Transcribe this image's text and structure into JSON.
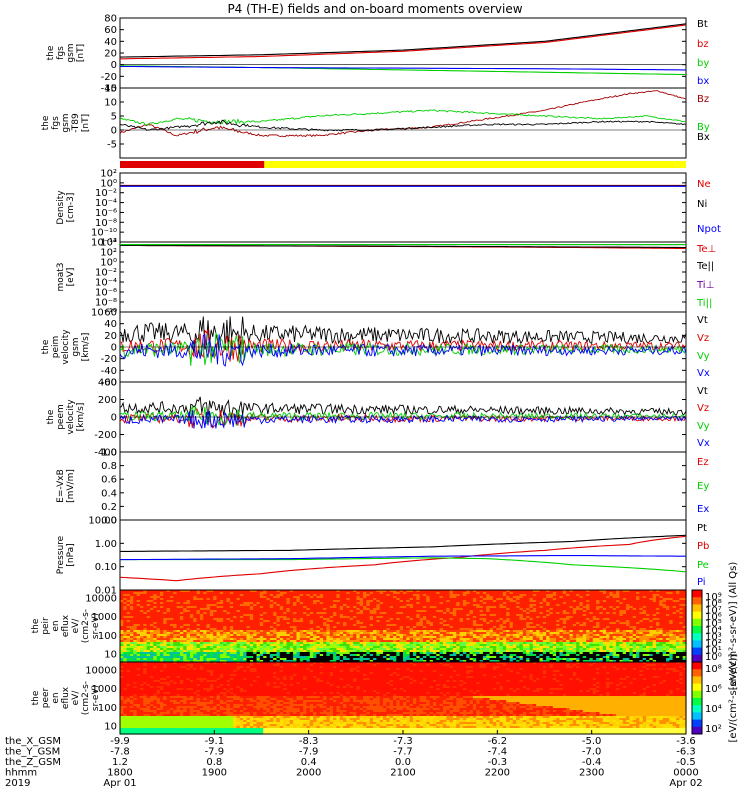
{
  "page": {
    "title": "P4 (TH-E) fields and on-board moments overview"
  },
  "colors": {
    "black": "#000000",
    "red": "#e00000",
    "dark_red": "#a00000",
    "green": "#00d000",
    "blue": "#0000ff",
    "yellow": "#ffff00",
    "purple": "#7000a0"
  },
  "chart_data": [
    {
      "id": "fgs_gsm",
      "type": "line",
      "ylabel_lines": [
        "the",
        "fgs",
        "gsm",
        "[nT]"
      ],
      "ylim": [
        -40,
        80
      ],
      "yticks": [
        -40,
        -20,
        0,
        20,
        40,
        60,
        80
      ],
      "series": [
        {
          "name": "Bt",
          "color": "#000000",
          "x": [
            0,
            0.25,
            0.5,
            0.75,
            1
          ],
          "values": [
            13,
            17,
            25,
            40,
            70
          ]
        },
        {
          "name": "bz",
          "color": "#e00000",
          "x": [
            0,
            0.25,
            0.5,
            0.75,
            1
          ],
          "values": [
            10,
            14,
            23,
            38,
            68
          ]
        },
        {
          "name": "by",
          "color": "#00d000",
          "x": [
            0,
            0.25,
            0.5,
            0.75,
            1
          ],
          "values": [
            -2,
            -5,
            -9,
            -13,
            -17
          ]
        },
        {
          "name": "bx",
          "color": "#0000ff",
          "x": [
            0,
            0.25,
            0.5,
            0.75,
            1
          ],
          "values": [
            -3,
            -5,
            -6,
            -7,
            -9
          ]
        }
      ],
      "noise": 0
    },
    {
      "id": "fgs_gsm_dc",
      "type": "line",
      "ylabel_lines": [
        "the",
        "fgs",
        "gsm",
        "-T89",
        "[nT]"
      ],
      "ylim": [
        -10,
        15
      ],
      "yticks": [
        -5,
        0,
        5,
        10,
        15
      ],
      "series": [
        {
          "name": "Bz",
          "color": "#a00000",
          "x": [
            0,
            0.05,
            0.1,
            0.17,
            0.25,
            0.35,
            0.45,
            0.55,
            0.65,
            0.75,
            0.82,
            0.9,
            0.95,
            1
          ],
          "values": [
            -1,
            2,
            -2,
            1,
            -2,
            -2,
            0,
            1,
            4,
            7,
            10,
            13,
            14,
            11
          ]
        },
        {
          "name": "By",
          "color": "#00d000",
          "x": [
            0,
            0.05,
            0.1,
            0.17,
            0.25,
            0.35,
            0.45,
            0.55,
            0.65,
            0.75,
            0.85,
            0.93,
            1
          ],
          "values": [
            4,
            2,
            4,
            3,
            3,
            5,
            6,
            7,
            6,
            5,
            4,
            5,
            3
          ]
        },
        {
          "name": "Bx",
          "color": "#000000",
          "x": [
            0,
            0.05,
            0.1,
            0.17,
            0.25,
            0.35,
            0.45,
            0.55,
            0.65,
            0.75,
            0.85,
            0.93,
            1
          ],
          "values": [
            2,
            0,
            1,
            3,
            1,
            0,
            0,
            1,
            2,
            2,
            3,
            3,
            2
          ]
        }
      ],
      "noise": 0.4
    },
    {
      "id": "flag_bar",
      "type": "bar",
      "segments": [
        {
          "from": 0,
          "to": 0.255,
          "color": "#e00000"
        },
        {
          "from": 0.255,
          "to": 1,
          "color": "#ffff00"
        }
      ]
    },
    {
      "id": "density",
      "type": "line",
      "log": true,
      "ylabel_lines": [
        "Density",
        "[cm-3]"
      ],
      "ylim": [
        1e-12,
        100
      ],
      "ytick_labels": [
        "10²",
        "10⁰",
        "10⁻²",
        "10⁻⁴",
        "10⁻⁶",
        "10⁻⁸",
        "10⁻¹⁰",
        "10⁻¹²"
      ],
      "series": [
        {
          "name": "Ne",
          "color": "#e00000",
          "x": [
            0,
            1
          ],
          "values": [
            0.3,
            0.3
          ]
        },
        {
          "name": "Ni",
          "color": "#000000",
          "x": [
            0,
            1
          ],
          "values": [
            0.25,
            0.25
          ]
        },
        {
          "name": "Npot",
          "color": "#0000ff",
          "x": [
            0,
            1
          ],
          "values": [
            0.2,
            0.2
          ]
        }
      ],
      "noise": 0
    },
    {
      "id": "moat3",
      "type": "line",
      "log": true,
      "ylabel_lines": [
        "moat3",
        "[eV]"
      ],
      "ylim": [
        1e-10,
        10000
      ],
      "ytick_labels": [
        "10⁴",
        "10²",
        "10⁰",
        "10⁻²",
        "10⁻⁴",
        "10⁻⁶",
        "10⁻⁸",
        "10⁻¹⁰"
      ],
      "series": [
        {
          "name": "Te⊥",
          "color": "#e00000",
          "x": [
            0,
            1
          ],
          "values": [
            2000,
            500
          ]
        },
        {
          "name": "Te||",
          "color": "#000000",
          "x": [
            0,
            1
          ],
          "values": [
            2000,
            800
          ]
        },
        {
          "name": "Ti⊥",
          "color": "#7000a0",
          "x": [
            0,
            1
          ],
          "values": [
            3000,
            3000
          ]
        },
        {
          "name": "Ti||",
          "color": "#00d000",
          "x": [
            0,
            1
          ],
          "values": [
            3000,
            3000
          ]
        }
      ],
      "noise": 0
    },
    {
      "id": "peim_velocity",
      "type": "line",
      "ylabel_lines": [
        "the",
        "peim",
        "velocity",
        "gsm",
        "[km/s]"
      ],
      "ylim": [
        -60,
        60
      ],
      "yticks": [
        -60,
        -40,
        -20,
        0,
        20,
        40,
        60
      ],
      "series": [
        {
          "name": "Vt",
          "color": "#000000",
          "x": [
            0,
            1
          ],
          "values": [
            25,
            15
          ]
        },
        {
          "name": "Vz",
          "color": "#e00000",
          "x": [
            0,
            1
          ],
          "values": [
            2,
            2
          ]
        },
        {
          "name": "Vy",
          "color": "#00d000",
          "x": [
            0,
            1
          ],
          "values": [
            -4,
            -4
          ]
        },
        {
          "name": "Vx",
          "color": "#0000ff",
          "x": [
            0,
            1
          ],
          "values": [
            -6,
            -6
          ]
        }
      ],
      "noise": 14
    },
    {
      "id": "peem_velocity",
      "type": "line",
      "ylabel_lines": [
        "the",
        "peem",
        "velocity",
        "[km/s]"
      ],
      "ylim": [
        -400,
        400
      ],
      "yticks": [
        -400,
        -200,
        0,
        200,
        400
      ],
      "series": [
        {
          "name": "Vt",
          "color": "#000000",
          "x": [
            0,
            1
          ],
          "values": [
            110,
            60
          ]
        },
        {
          "name": "Vz",
          "color": "#e00000",
          "x": [
            0,
            1
          ],
          "values": [
            -15,
            -15
          ]
        },
        {
          "name": "Vy",
          "color": "#00d000",
          "x": [
            0,
            1
          ],
          "values": [
            10,
            10
          ]
        },
        {
          "name": "Vx",
          "color": "#0000ff",
          "x": [
            0,
            1
          ],
          "values": [
            -30,
            -20
          ]
        }
      ],
      "noise": 55
    },
    {
      "id": "efield",
      "type": "line",
      "ylabel_lines": [
        "E=-VxB",
        "[mV/m]"
      ],
      "ylim": [
        0,
        1
      ],
      "yticks": [
        0,
        0.2,
        0.4,
        0.6,
        0.8,
        1.0
      ],
      "ytick_labels": [
        "0.0",
        "0.2",
        "0.4",
        "0.6",
        "0.8",
        "1.0"
      ],
      "series": [
        {
          "name": "Ez",
          "color": "#e00000",
          "x": [],
          "values": []
        },
        {
          "name": "Ey",
          "color": "#00d000",
          "x": [],
          "values": []
        },
        {
          "name": "Ex",
          "color": "#0000ff",
          "x": [],
          "values": []
        }
      ],
      "noise": 0
    },
    {
      "id": "pressure",
      "type": "line",
      "log": true,
      "ylabel_lines": [
        "Pressure",
        "[nPa]"
      ],
      "ylim": [
        0.01,
        10
      ],
      "ytick_labels": [
        "10.00",
        "1.00",
        "0.10",
        "0.01"
      ],
      "series": [
        {
          "name": "Pt",
          "color": "#000000",
          "x": [
            0,
            0.3,
            0.55,
            0.8,
            1
          ],
          "values": [
            0.45,
            0.5,
            0.7,
            1.2,
            2.2
          ]
        },
        {
          "name": "Pb",
          "color": "#e00000",
          "x": [
            0,
            0.1,
            0.25,
            0.45,
            0.6,
            0.75,
            0.9,
            1
          ],
          "values": [
            0.035,
            0.025,
            0.05,
            0.12,
            0.25,
            0.5,
            0.9,
            2.0
          ]
        },
        {
          "name": "Pe",
          "color": "#00d000",
          "x": [
            0,
            0.3,
            0.55,
            0.65,
            0.8,
            1
          ],
          "values": [
            0.2,
            0.2,
            0.24,
            0.22,
            0.12,
            0.06
          ]
        },
        {
          "name": "Pi",
          "color": "#0000ff",
          "x": [
            0,
            0.3,
            0.55,
            0.8,
            1
          ],
          "values": [
            0.2,
            0.22,
            0.28,
            0.3,
            0.28
          ]
        }
      ],
      "noise": 0
    },
    {
      "id": "peir_spectrogram",
      "type": "heatmap",
      "ylabel_lines": [
        "the",
        "peir",
        "en",
        "eflux",
        "eV/",
        "(cm2-s-",
        "sr-eV)"
      ],
      "ytick_labels": [
        "10000",
        "1000",
        "100",
        "10"
      ],
      "colorbar_ticks": [
        "10⁹",
        "10⁸",
        "10⁷",
        "10⁶",
        "10⁵",
        "10⁴",
        "10³",
        "10²",
        "10¹",
        "10⁰"
      ],
      "colorbar_label": "[eV/(cm²-s-sr-eV)] (All Qs)"
    },
    {
      "id": "peer_spectrogram",
      "type": "heatmap",
      "ylabel_lines": [
        "the",
        "peer",
        "en",
        "eflux",
        "eV/",
        "(cm2-s-",
        "sr-eV)"
      ],
      "ytick_labels": [
        "10000",
        "1000",
        "100",
        "10"
      ],
      "colorbar_ticks": [
        "10⁸",
        "10⁶",
        "10⁴",
        "10²"
      ],
      "colorbar_label": "[eV/(cm²-s-sr-eV)]"
    }
  ],
  "x_axis": {
    "row_labels": [
      "the_X_GSM",
      "the_Y_GSM",
      "the_Z_GSM",
      "hhmm",
      "2019"
    ],
    "columns": [
      [
        "-9.9",
        "-7.8",
        "1.2",
        "1800",
        "Apr 01"
      ],
      [
        "-9.1",
        "-7.9",
        "0.8",
        "1900",
        ""
      ],
      [
        "-8.3",
        "-7.9",
        "0.4",
        "2000",
        ""
      ],
      [
        "-7.3",
        "-7.7",
        "0.0",
        "2100",
        ""
      ],
      [
        "-6.2",
        "-7.4",
        "-0.3",
        "2200",
        ""
      ],
      [
        "-5.0",
        "-7.0",
        "-0.4",
        "2300",
        ""
      ],
      [
        "-3.6",
        "-6.3",
        "-0.5",
        "0000",
        "Apr 02"
      ]
    ]
  }
}
